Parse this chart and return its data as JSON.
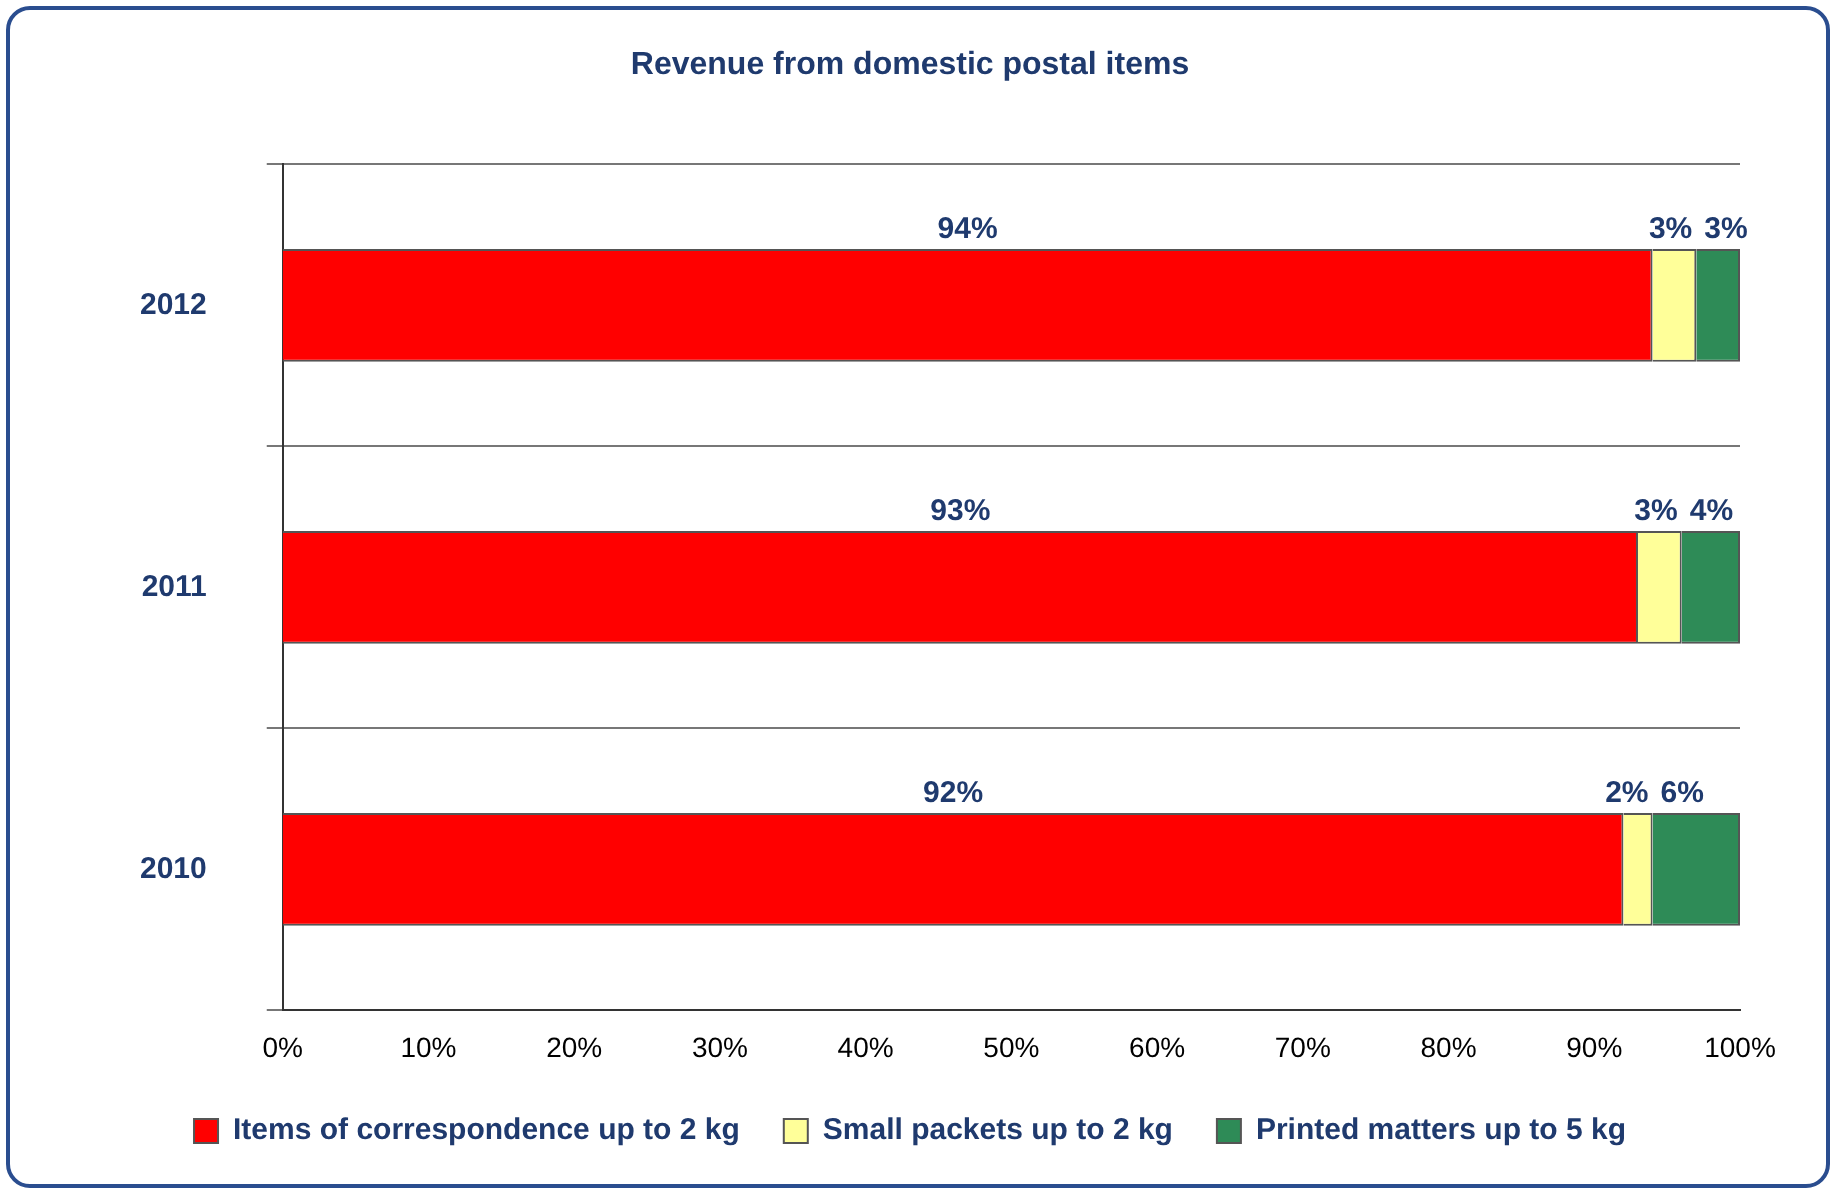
{
  "chart_data": {
    "type": "bar",
    "orientation": "horizontal",
    "stacked": true,
    "title": "Revenue from domestic postal items",
    "categories": [
      "2012",
      "2011",
      "2010"
    ],
    "series": [
      {
        "name": "Items of correspondence up to 2 kg",
        "color": "#ff0000",
        "values": [
          94,
          93,
          92
        ],
        "value_labels": [
          "94%",
          "93%",
          "92%"
        ]
      },
      {
        "name": "Small packets up to 2 kg",
        "color": "#ffff99",
        "values": [
          3,
          3,
          2
        ],
        "value_labels": [
          "3%",
          "3%",
          "2%"
        ]
      },
      {
        "name": "Printed matters up to 5 kg",
        "color": "#2e8b57",
        "values": [
          3,
          4,
          6
        ],
        "value_labels": [
          "3%",
          "4%",
          "6%"
        ]
      }
    ],
    "xlim": [
      0,
      100
    ],
    "xticks": [
      {
        "value": 0,
        "label": "0%"
      },
      {
        "value": 10,
        "label": "10%"
      },
      {
        "value": 20,
        "label": "20%"
      },
      {
        "value": 30,
        "label": "30%"
      },
      {
        "value": 40,
        "label": "40%"
      },
      {
        "value": 50,
        "label": "50%"
      },
      {
        "value": 60,
        "label": "60%"
      },
      {
        "value": 70,
        "label": "70%"
      },
      {
        "value": 80,
        "label": "80%"
      },
      {
        "value": 90,
        "label": "90%"
      },
      {
        "value": 100,
        "label": "100%"
      }
    ],
    "grid": "y",
    "legend": "bottom"
  }
}
